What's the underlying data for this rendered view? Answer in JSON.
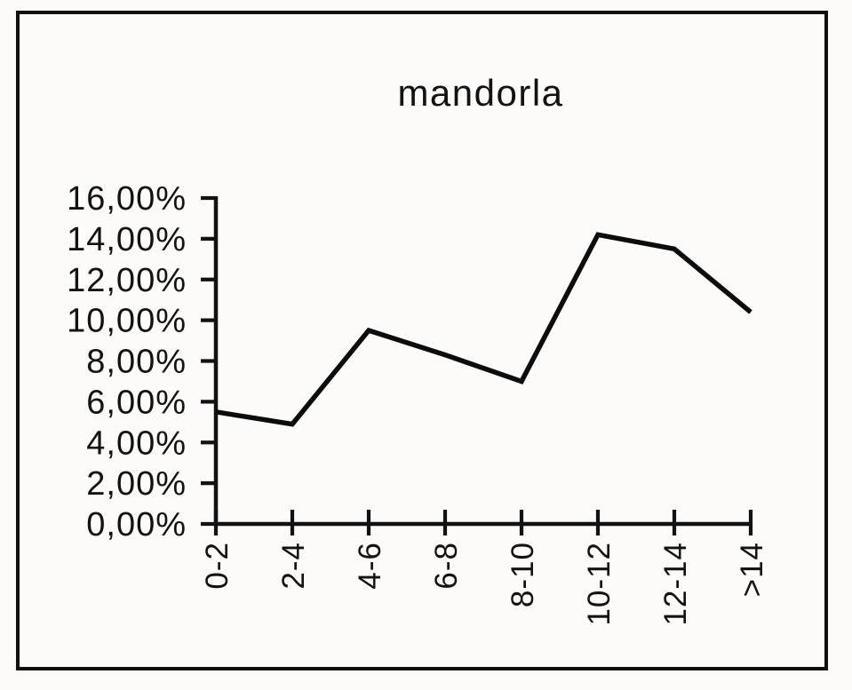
{
  "frame": {
    "border_color": "#101010",
    "background": "#fcfbf9"
  },
  "chart_data": {
    "type": "line",
    "title": "mandorla",
    "categories": [
      "0-2",
      "2-4",
      "4-6",
      "6-8",
      "8-10",
      "10-12",
      "12-14",
      ">14"
    ],
    "values": [
      5.5,
      4.9,
      9.5,
      8.3,
      7.0,
      14.2,
      13.5,
      10.4
    ],
    "y_tick_labels": [
      "16,00%",
      "14,00%",
      "12,00%",
      "10,00%",
      "8,00%",
      "6,00%",
      "4,00%",
      "2,00%",
      "0,00%"
    ],
    "ylim": [
      0,
      16
    ],
    "y_step": 2,
    "xlabel": "",
    "ylabel": "",
    "grid": false,
    "legend": false,
    "x_labels_rotated_deg": -90,
    "line_color": "#0c0c0c",
    "axis_color": "#121212",
    "text_color": "#121212"
  }
}
